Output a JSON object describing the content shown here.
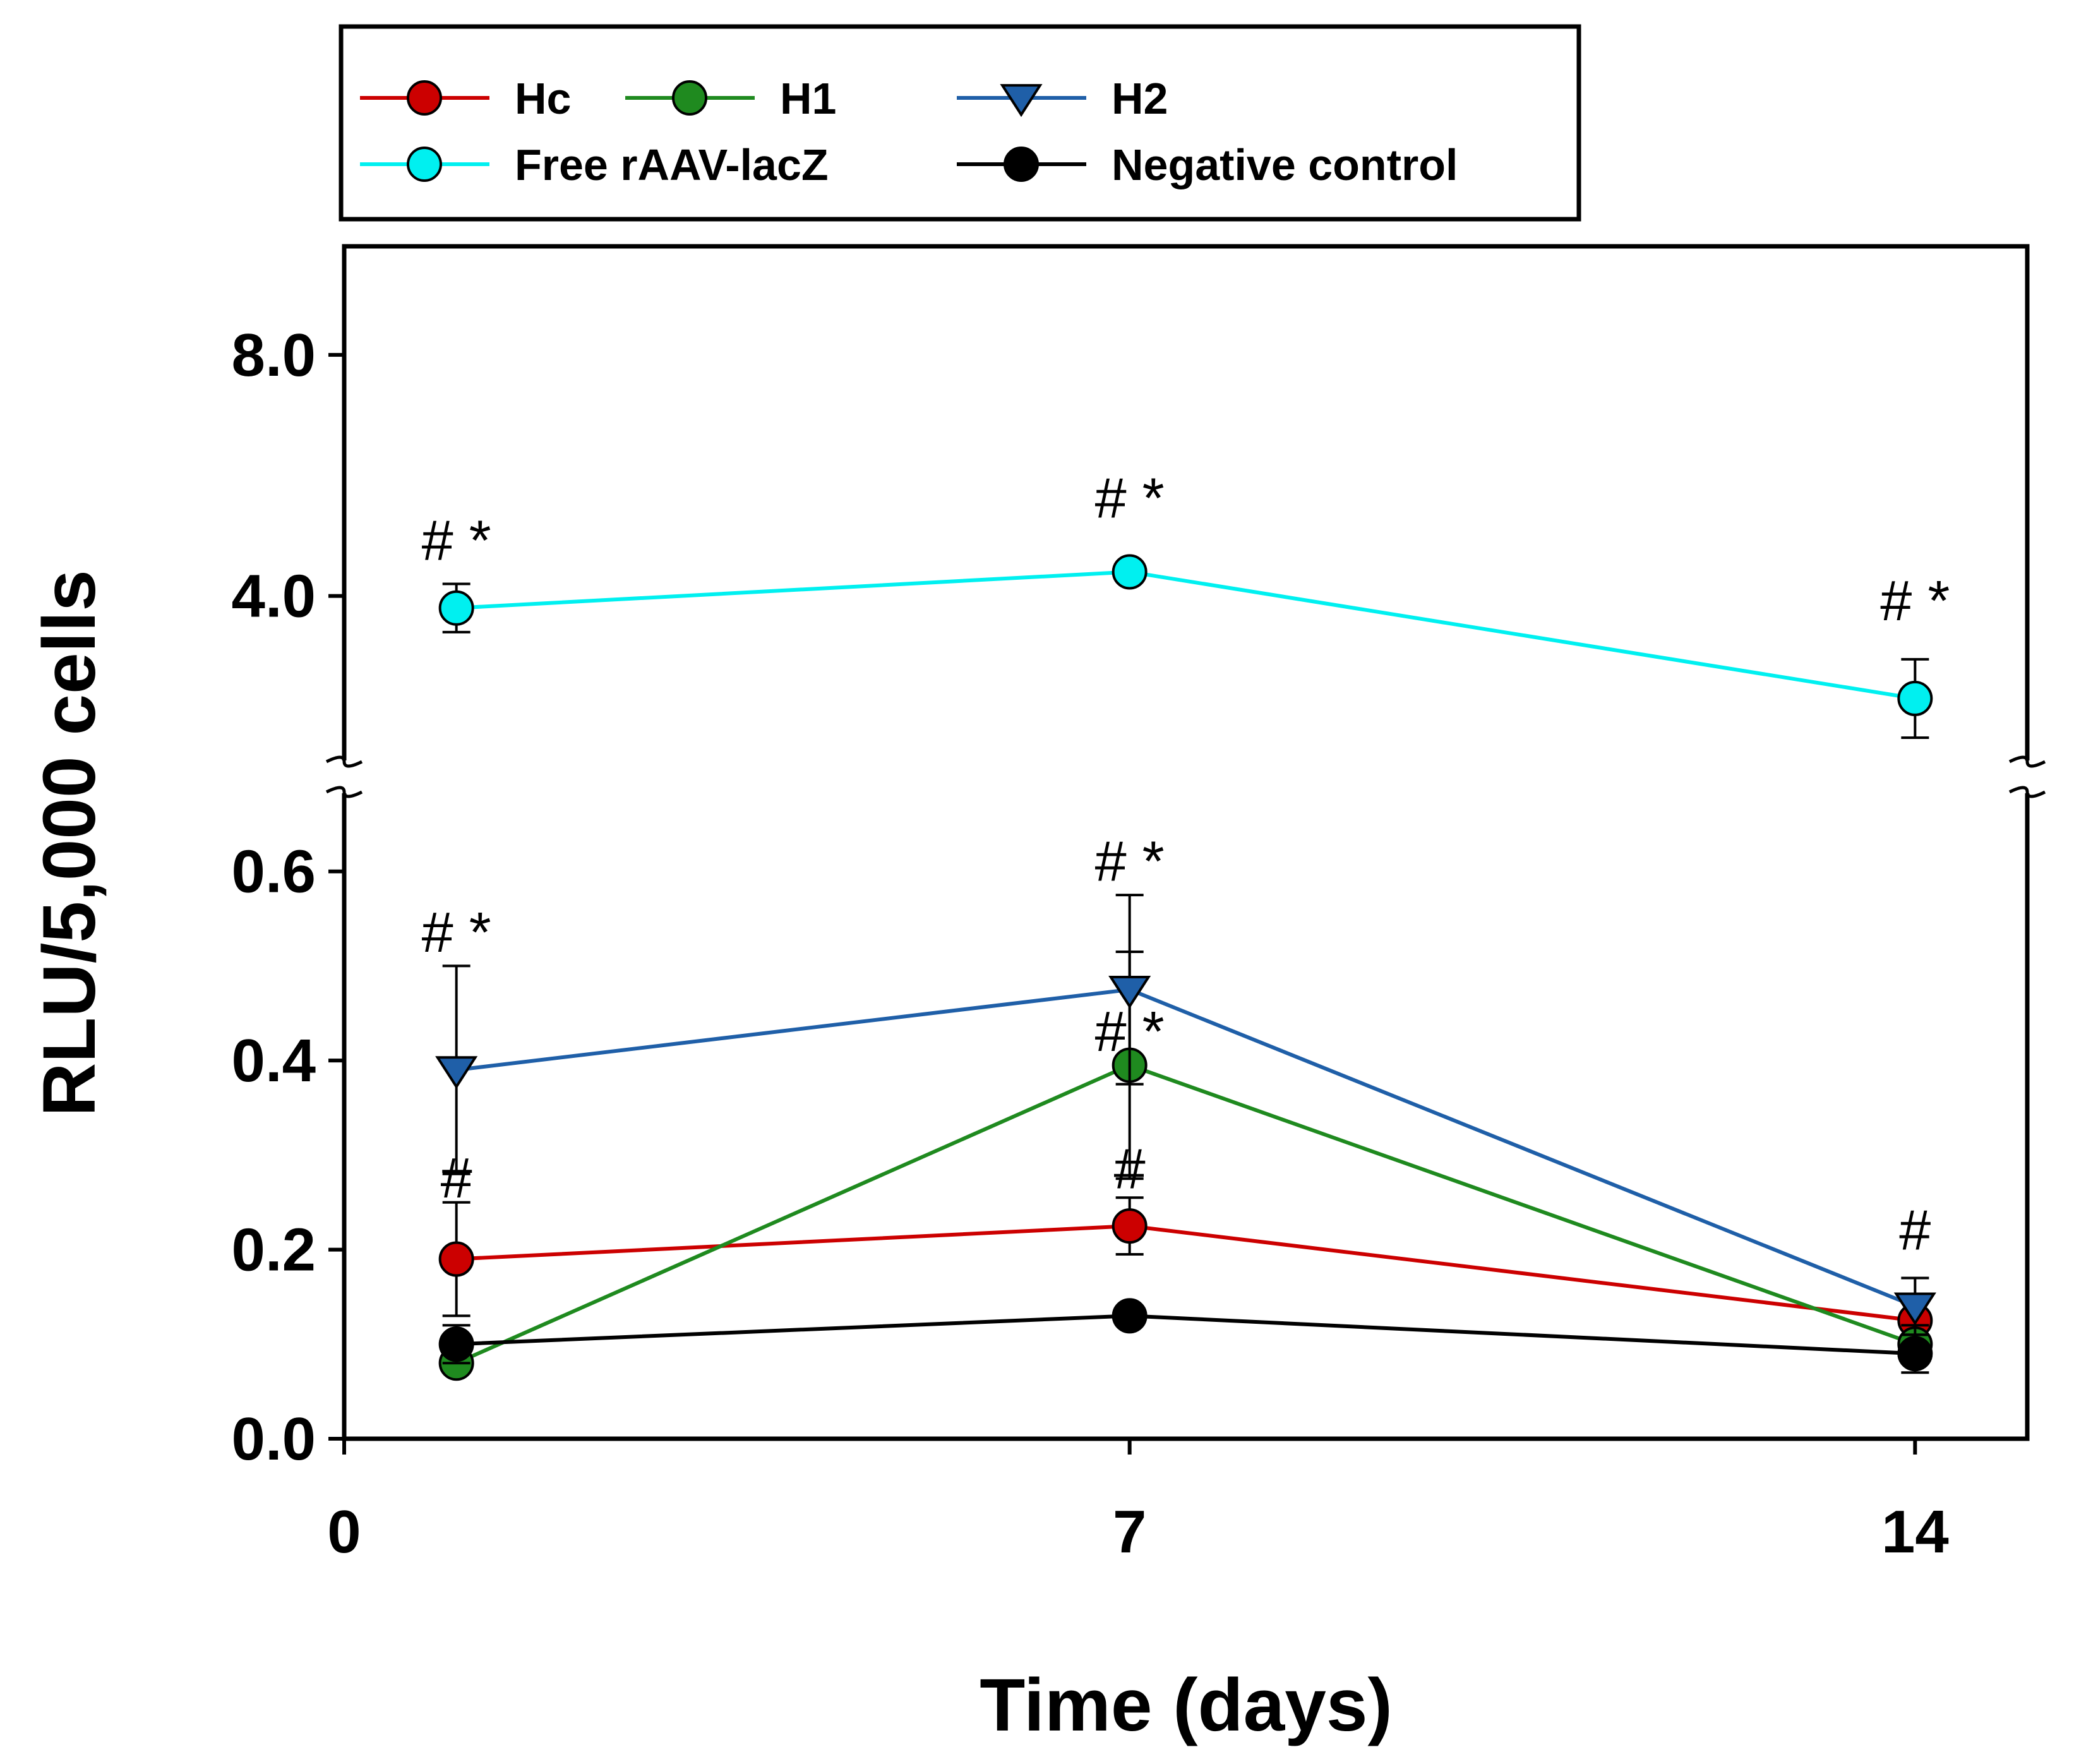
{
  "chart_data": {
    "type": "line",
    "xlabel": "Time (days)",
    "ylabel": "RLU/5,000 cells",
    "x_ticks": [
      "0",
      "7",
      "14"
    ],
    "x_range": [
      0,
      15
    ],
    "y_axis_break": true,
    "y_lower": {
      "range": [
        0.0,
        0.7
      ],
      "ticks": [
        "0.0",
        "0.2",
        "0.4",
        "0.6"
      ]
    },
    "y_upper": {
      "range": [
        1.0,
        9.8
      ],
      "ticks": [
        "4.0",
        "8.0"
      ]
    },
    "grid": false,
    "legend_position": "top",
    "series": [
      {
        "name": "Hc",
        "color": "#cc0000",
        "marker": "circle",
        "points": [
          {
            "x": 1,
            "y": 0.19,
            "err": 0.06
          },
          {
            "x": 7,
            "y": 0.225,
            "err": 0.03
          },
          {
            "x": 14,
            "y": 0.125,
            "err": 0.02
          }
        ]
      },
      {
        "name": "H1",
        "color": "#1f8a1f",
        "marker": "circle",
        "points": [
          {
            "x": 1,
            "y": 0.08,
            "err": 0.0
          },
          {
            "x": 7,
            "y": 0.395,
            "err": 0.12
          },
          {
            "x": 14,
            "y": 0.1,
            "err": 0.02
          }
        ]
      },
      {
        "name": "H2",
        "color": "#1f5fa8",
        "marker": "triangle-down",
        "points": [
          {
            "x": 1,
            "y": 0.39,
            "err": 0.11
          },
          {
            "x": 7,
            "y": 0.475,
            "err": 0.1
          },
          {
            "x": 14,
            "y": 0.14,
            "err": 0.03
          }
        ]
      },
      {
        "name": "Free rAAV-lacZ",
        "color": "#00f0f0",
        "marker": "circle",
        "points": [
          {
            "x": 1,
            "y": 3.8,
            "err": 0.4
          },
          {
            "x": 7,
            "y": 4.4,
            "err": 0.0
          },
          {
            "x": 14,
            "y": 2.3,
            "err": 0.65
          }
        ]
      },
      {
        "name": "Negative control",
        "color": "#000000",
        "marker": "circle",
        "points": [
          {
            "x": 1,
            "y": 0.1,
            "err": 0.02
          },
          {
            "x": 7,
            "y": 0.13,
            "err": 0.0
          },
          {
            "x": 14,
            "y": 0.09,
            "err": 0.02
          }
        ]
      }
    ],
    "annotations": [
      {
        "text": "# *",
        "x": 1,
        "y": 4.6
      },
      {
        "text": "# *",
        "x": 7,
        "y": 5.3
      },
      {
        "text": "# *",
        "x": 14,
        "y": 3.6
      },
      {
        "text": "# *",
        "x": 1,
        "y": 0.515
      },
      {
        "text": "# *",
        "x": 7,
        "y": 0.59
      },
      {
        "text": "# *",
        "x": 7,
        "y": 0.41
      },
      {
        "text": "#",
        "x": 1,
        "y": 0.255
      },
      {
        "text": "#",
        "x": 7,
        "y": 0.265
      },
      {
        "text": "#",
        "x": 14,
        "y": 0.2
      }
    ]
  }
}
